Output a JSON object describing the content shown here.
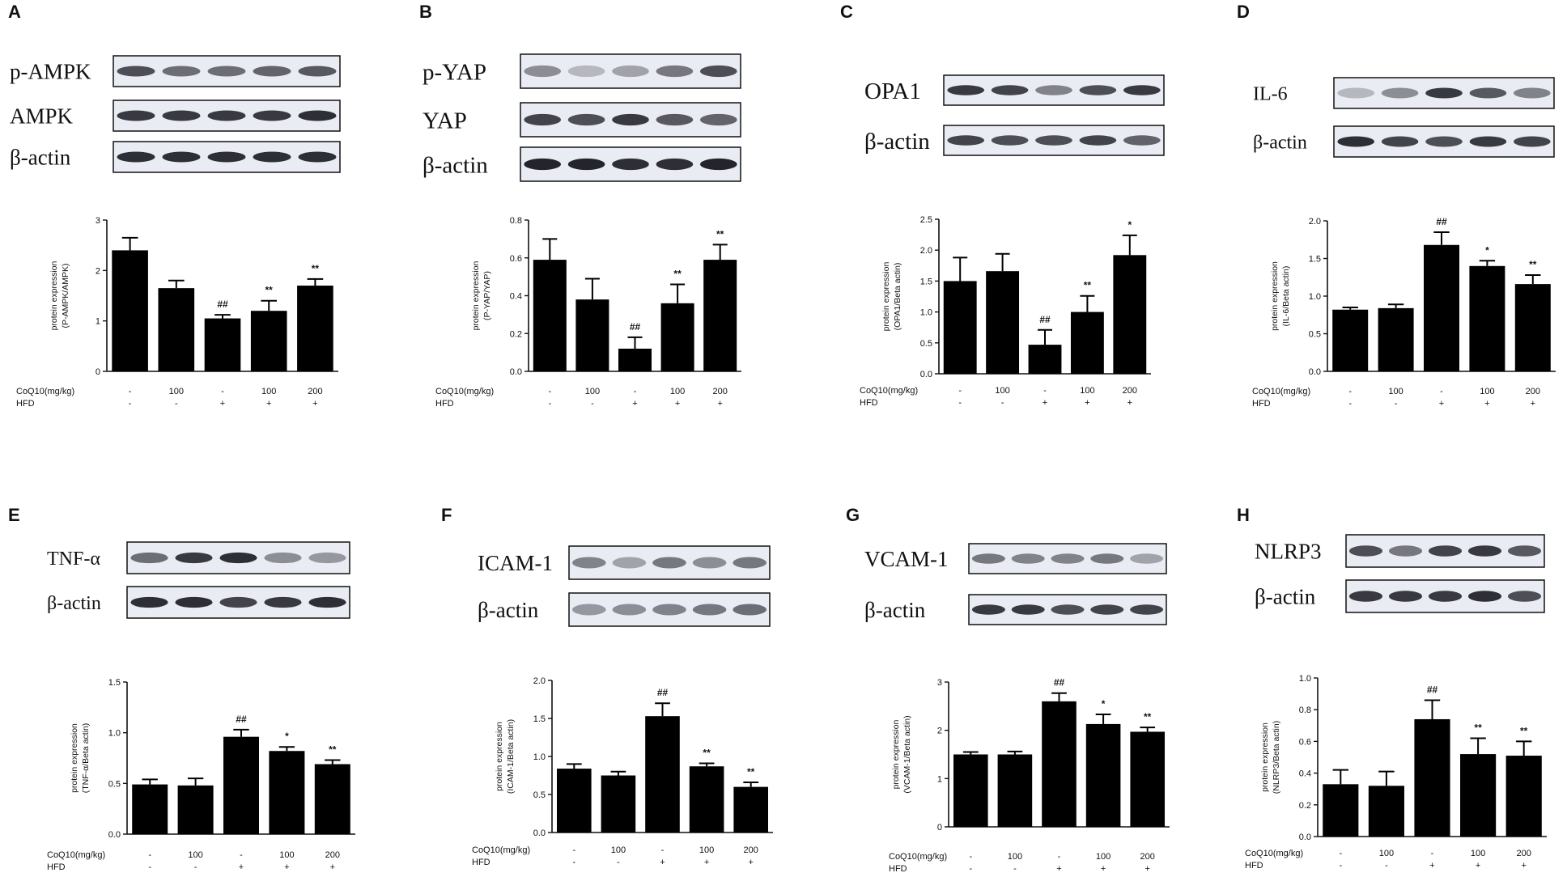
{
  "figure": {
    "treatment_labels": {
      "coq10": "CoQ10(mg/kg)",
      "hfd": "HFD"
    },
    "groups": [
      {
        "coq10": "-",
        "hfd": "-"
      },
      {
        "coq10": "100",
        "hfd": "-"
      },
      {
        "coq10": "-",
        "hfd": "+"
      },
      {
        "coq10": "100",
        "hfd": "+"
      },
      {
        "coq10": "200",
        "hfd": "+"
      }
    ],
    "bar_color": "#000000",
    "blot_background": "#e9ecf3"
  },
  "chart_data": [
    {
      "panel": "A",
      "type": "bar",
      "blot_labels": [
        "p-AMPK",
        "AMPK",
        "β-actin"
      ],
      "band_intensity": [
        [
          0.75,
          0.6,
          0.6,
          0.65,
          0.7
        ],
        [
          0.85,
          0.85,
          0.85,
          0.85,
          0.9
        ],
        [
          0.9,
          0.9,
          0.9,
          0.9,
          0.9
        ]
      ],
      "ylabel_lines": [
        "protein expression",
        "(P-AMPK/AMPK)"
      ],
      "ylim": [
        0,
        3
      ],
      "yticks": [
        "0",
        "1",
        "2",
        "3"
      ],
      "values": [
        2.4,
        1.65,
        1.05,
        1.2,
        1.7
      ],
      "errors": [
        0.25,
        0.15,
        0.07,
        0.2,
        0.13
      ],
      "annotations": [
        "",
        "",
        "##",
        "**",
        "**"
      ]
    },
    {
      "panel": "B",
      "type": "bar",
      "blot_labels": [
        "p-YAP",
        "YAP",
        "β-actin"
      ],
      "band_intensity": [
        [
          0.45,
          0.25,
          0.35,
          0.55,
          0.75
        ],
        [
          0.8,
          0.75,
          0.85,
          0.7,
          0.65
        ],
        [
          0.95,
          0.95,
          0.9,
          0.9,
          0.95
        ]
      ],
      "ylabel_lines": [
        "protein expression",
        "(P-YAP/YAP)"
      ],
      "ylim": [
        0,
        0.8
      ],
      "yticks": [
        "0.0",
        "0.2",
        "0.4",
        "0.6",
        "0.8"
      ],
      "values": [
        0.59,
        0.38,
        0.12,
        0.36,
        0.59
      ],
      "errors": [
        0.11,
        0.11,
        0.06,
        0.1,
        0.08
      ],
      "annotations": [
        "",
        "",
        "##",
        "**",
        "**"
      ]
    },
    {
      "panel": "C",
      "type": "bar",
      "blot_labels": [
        "OPA1",
        "β-actin"
      ],
      "band_intensity": [
        [
          0.85,
          0.8,
          0.5,
          0.75,
          0.85
        ],
        [
          0.8,
          0.75,
          0.75,
          0.8,
          0.65
        ]
      ],
      "ylabel_lines": [
        "protein expression",
        "(OPA1/Beta actin)"
      ],
      "ylim": [
        0,
        2.5
      ],
      "yticks": [
        "0.0",
        "0.5",
        "1.0",
        "1.5",
        "2.0",
        "2.5"
      ],
      "values": [
        1.5,
        1.66,
        0.47,
        1.0,
        1.92
      ],
      "errors": [
        0.38,
        0.28,
        0.24,
        0.26,
        0.32
      ],
      "annotations": [
        "",
        "",
        "##",
        "**",
        "*"
      ]
    },
    {
      "panel": "D",
      "type": "bar",
      "blot_labels": [
        "IL-6",
        "β-actin"
      ],
      "band_intensity": [
        [
          0.25,
          0.45,
          0.85,
          0.7,
          0.5
        ],
        [
          0.9,
          0.8,
          0.75,
          0.85,
          0.8
        ]
      ],
      "ylabel_lines": [
        "protein expression",
        "(IL-6/Beta actin)"
      ],
      "ylim": [
        0,
        2.0
      ],
      "yticks": [
        "0.0",
        "0.5",
        "1.0",
        "1.5",
        "2.0"
      ],
      "values": [
        0.82,
        0.84,
        1.68,
        1.4,
        1.16
      ],
      "errors": [
        0.03,
        0.05,
        0.17,
        0.07,
        0.12
      ],
      "annotations": [
        "",
        "",
        "##",
        "*",
        "**"
      ]
    },
    {
      "panel": "E",
      "type": "bar",
      "blot_labels": [
        "TNF-α",
        "β-actin"
      ],
      "band_intensity": [
        [
          0.6,
          0.85,
          0.9,
          0.45,
          0.4
        ],
        [
          0.9,
          0.9,
          0.8,
          0.85,
          0.9
        ]
      ],
      "ylabel_lines": [
        "protein expression",
        "(TNF-α/Beta actin)"
      ],
      "ylim": [
        0,
        1.5
      ],
      "yticks": [
        "0.0",
        "0.5",
        "1.0",
        "1.5"
      ],
      "values": [
        0.49,
        0.48,
        0.96,
        0.82,
        0.69
      ],
      "errors": [
        0.05,
        0.07,
        0.07,
        0.04,
        0.04
      ],
      "annotations": [
        "",
        "",
        "##",
        "*",
        "**"
      ]
    },
    {
      "panel": "F",
      "type": "bar",
      "blot_labels": [
        "ICAM-1",
        "β-actin"
      ],
      "band_intensity": [
        [
          0.5,
          0.35,
          0.55,
          0.45,
          0.55
        ],
        [
          0.4,
          0.45,
          0.5,
          0.55,
          0.6
        ]
      ],
      "ylabel_lines": [
        "protein expression",
        "(ICAM-1/Beta actin)"
      ],
      "ylim": [
        0,
        2.0
      ],
      "yticks": [
        "0.0",
        "0.5",
        "1.0",
        "1.5",
        "2.0"
      ],
      "values": [
        0.84,
        0.75,
        1.53,
        0.87,
        0.6
      ],
      "errors": [
        0.06,
        0.05,
        0.17,
        0.04,
        0.06
      ],
      "annotations": [
        "",
        "",
        "##",
        "**",
        "**"
      ]
    },
    {
      "panel": "G",
      "type": "bar",
      "blot_labels": [
        "VCAM-1",
        "β-actin"
      ],
      "band_intensity": [
        [
          0.55,
          0.5,
          0.5,
          0.55,
          0.35
        ],
        [
          0.85,
          0.85,
          0.75,
          0.8,
          0.8
        ]
      ],
      "ylabel_lines": [
        "protein expression",
        "(VCAM-1/Beta actin)"
      ],
      "ylim": [
        0,
        3
      ],
      "yticks": [
        "0",
        "1",
        "2",
        "3"
      ],
      "values": [
        1.5,
        1.5,
        2.6,
        2.13,
        1.97
      ],
      "errors": [
        0.05,
        0.06,
        0.17,
        0.2,
        0.09
      ],
      "annotations": [
        "",
        "",
        "##",
        "*",
        "**"
      ]
    },
    {
      "panel": "H",
      "type": "bar",
      "blot_labels": [
        "NLRP3",
        "β-actin"
      ],
      "band_intensity": [
        [
          0.75,
          0.55,
          0.8,
          0.85,
          0.7
        ],
        [
          0.85,
          0.85,
          0.85,
          0.9,
          0.75
        ]
      ],
      "ylabel_lines": [
        "protein expression",
        "(NLRP3/Beta actin)"
      ],
      "ylim": [
        0,
        1.0
      ],
      "yticks": [
        "0.0",
        "0.2",
        "0.4",
        "0.6",
        "0.8",
        "1.0"
      ],
      "values": [
        0.33,
        0.32,
        0.74,
        0.52,
        0.51
      ],
      "errors": [
        0.09,
        0.09,
        0.12,
        0.1,
        0.09
      ],
      "annotations": [
        "",
        "",
        "##",
        "**",
        "**"
      ]
    }
  ]
}
